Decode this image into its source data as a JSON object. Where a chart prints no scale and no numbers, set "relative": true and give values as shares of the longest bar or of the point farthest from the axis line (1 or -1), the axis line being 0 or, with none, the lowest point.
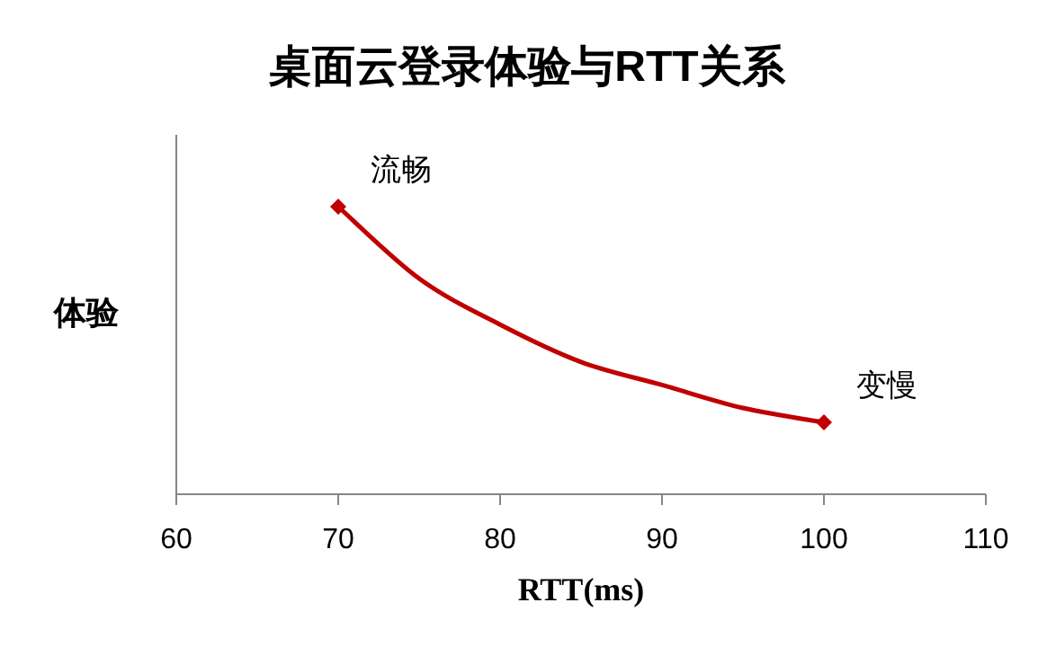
{
  "chart_data": {
    "type": "line",
    "title": "桌面云登录体验与RTT关系",
    "xlabel": "RTT(ms)",
    "ylabel": "体验",
    "relative": true,
    "xlim": [
      60,
      110
    ],
    "xticks": [
      60,
      70,
      80,
      90,
      100,
      110
    ],
    "grid": false,
    "series": [
      {
        "type": "line",
        "color": "#c00000",
        "marker": "none",
        "x": [
          70,
          75,
          80,
          85,
          90,
          95,
          100
        ],
        "values": [
          1,
          0.75,
          0.59,
          0.46,
          0.38,
          0.3,
          0.25
        ]
      },
      {
        "type": "scatter",
        "color": "#c00000",
        "marker": "diamond",
        "x": [
          70,
          100
        ],
        "values": [
          1,
          0.25
        ]
      }
    ],
    "annotations": [
      {
        "text": "流畅",
        "x": 70,
        "y": 1
      },
      {
        "text": "变慢",
        "x": 100,
        "y": 0.25
      }
    ]
  }
}
